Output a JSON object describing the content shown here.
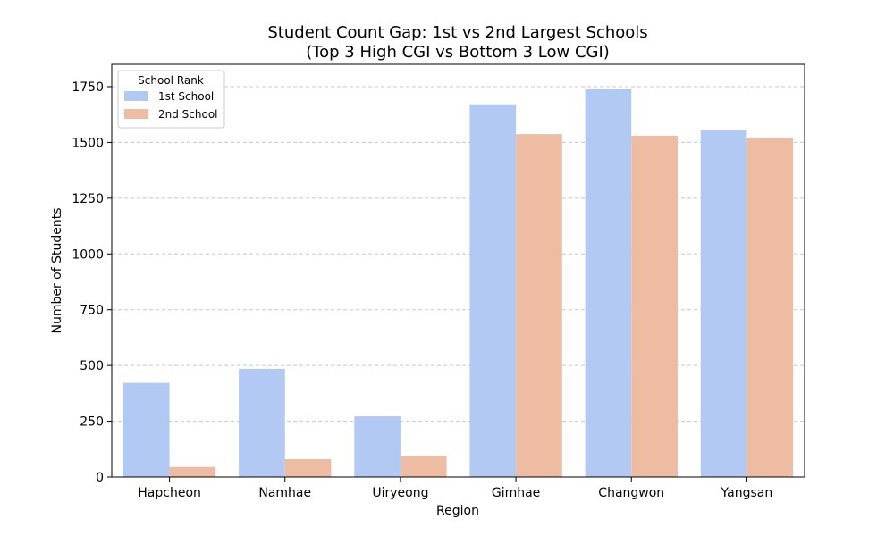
{
  "chart_data": {
    "type": "bar",
    "title_lines": [
      "Student Count Gap: 1st vs 2nd Largest Schools",
      "(Top 3 High CGI vs Bottom 3 Low CGI)"
    ],
    "xlabel": "Region",
    "ylabel": "Number of Students",
    "categories": [
      "Hapcheon",
      "Namhae",
      "Uiryeong",
      "Gimhae",
      "Changwon",
      "Yangsan"
    ],
    "series": [
      {
        "name": "1st School",
        "color": "#b2c9f3",
        "values": [
          422,
          485,
          272,
          1671,
          1738,
          1555
        ]
      },
      {
        "name": "2nd School",
        "color": "#eebba3",
        "values": [
          45,
          80,
          95,
          1537,
          1530,
          1520
        ]
      }
    ],
    "ylim": [
      0,
      1850
    ],
    "yticks": [
      0,
      250,
      500,
      750,
      1000,
      1250,
      1500,
      1750
    ],
    "grid": "y-dashed",
    "legend": {
      "title": "School Rank",
      "placement": "top-left"
    }
  }
}
